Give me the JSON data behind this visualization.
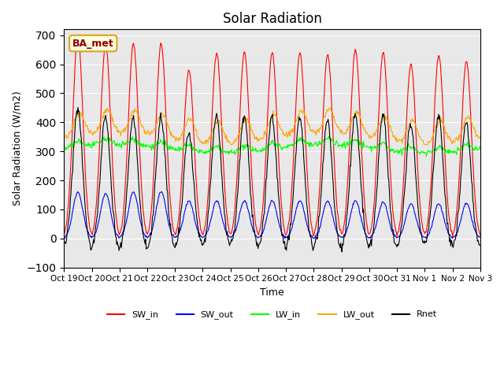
{
  "title": "Solar Radiation",
  "ylabel": "Solar Radiation (W/m2)",
  "xlabel": "Time",
  "ylim": [
    -100,
    720
  ],
  "yticks": [
    -100,
    0,
    100,
    200,
    300,
    400,
    500,
    600,
    700
  ],
  "xtick_labels": [
    "Oct 19",
    "Oct 20",
    "Oct 21",
    "Oct 22",
    "Oct 23",
    "Oct 24",
    "Oct 25",
    "Oct 26",
    "Oct 27",
    "Oct 28",
    "Oct 29",
    "Oct 30",
    "Oct 31",
    "Nov 1",
    "Nov 2",
    "Nov 3"
  ],
  "legend_entries": [
    "SW_in",
    "SW_out",
    "LW_in",
    "LW_out",
    "Rnet"
  ],
  "legend_colors": [
    "red",
    "blue",
    "lime",
    "orange",
    "black"
  ],
  "annotation_text": "BA_met",
  "background_color": "#e8e8e8",
  "n_days": 15,
  "pts_per_day": 48,
  "SW_in_peaks": [
    700,
    670,
    670,
    670,
    580,
    640,
    640,
    640,
    640,
    635,
    650,
    640,
    600,
    630,
    610
  ],
  "SW_out_peaks": [
    160,
    155,
    160,
    160,
    130,
    130,
    130,
    130,
    130,
    130,
    130,
    125,
    120,
    120,
    120
  ],
  "LW_in_base": 310,
  "LW_out_base": 345
}
